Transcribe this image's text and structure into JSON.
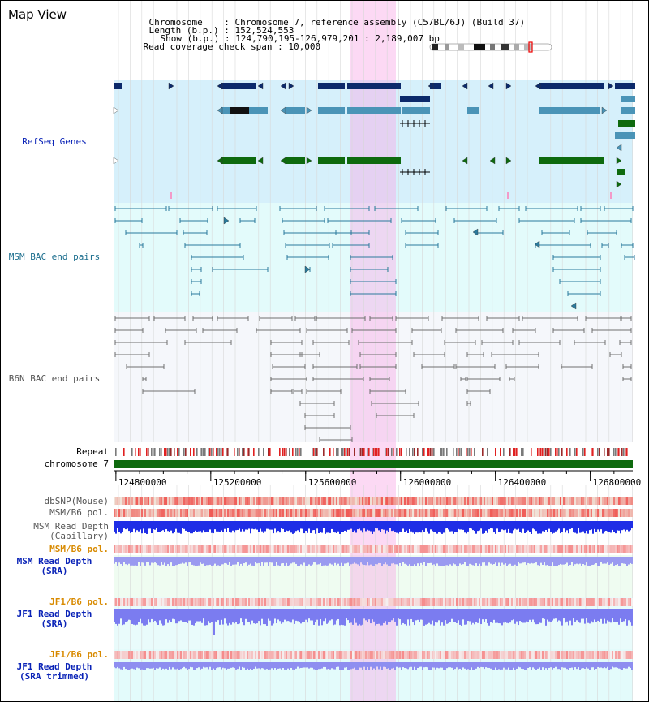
{
  "header": {
    "title": "Map View",
    "chromosome_label": "Chromosome",
    "chromosome_value": "Chromosome 7, reference assembly (C57BL/6J) (Build 37)",
    "length_label": "Length (b.p.)",
    "length_value": "152,524,553",
    "show_label": "Show (b.p.)",
    "show_value": "124,790,195-126,979,201 : 2,189,007 bp",
    "span_label": "Read coverage check span",
    "span_value": "10,000"
  },
  "tracks": {
    "refseq": "RefSeq Genes",
    "msm_bac": "MSM BAC end pairs",
    "b6n_bac": "B6N BAC end pairs",
    "repeat": "Repeat",
    "chromosome": "chromosome 7",
    "dbsnp": "dbSNP(Mouse)",
    "msm_b6_pol_1": "MSM/B6 pol.",
    "msm_depth_cap": "MSM Read Depth\n(Capillary)",
    "msm_b6_pol_2": "MSM/B6 pol.",
    "msm_depth_sra": "MSM Read Depth\n(SRA)",
    "jf1_b6_pol_1": "JF1/B6 pol.",
    "jf1_depth_sra": "JF1 Read Depth\n(SRA)",
    "jf1_b6_pol_2": "JF1/B6 pol.",
    "jf1_depth_trim": "JF1 Read Depth\n(SRA trimmed)"
  },
  "axis": {
    "ticks": [
      "124800000",
      "125200000",
      "125600000",
      "126000000",
      "126400000",
      "126800000"
    ]
  },
  "colors": {
    "highlight": "#f9d3f0",
    "refseq_bg": "#d6f0fb",
    "msm_bg": "#e3fbfb",
    "b6n_bg": "#f5f7fb",
    "depth_bg": "#effcf1",
    "navy": "#0c2a6b",
    "teal": "#4a94b7",
    "green": "#0e6a0e",
    "msm_line": "#2a7a9c",
    "b6n_line": "#6f6f6f",
    "label_blue": "#0a23b7",
    "label_teal": "#1a6d8d",
    "label_orange": "#d88a00",
    "label_gray": "#555555"
  }
}
